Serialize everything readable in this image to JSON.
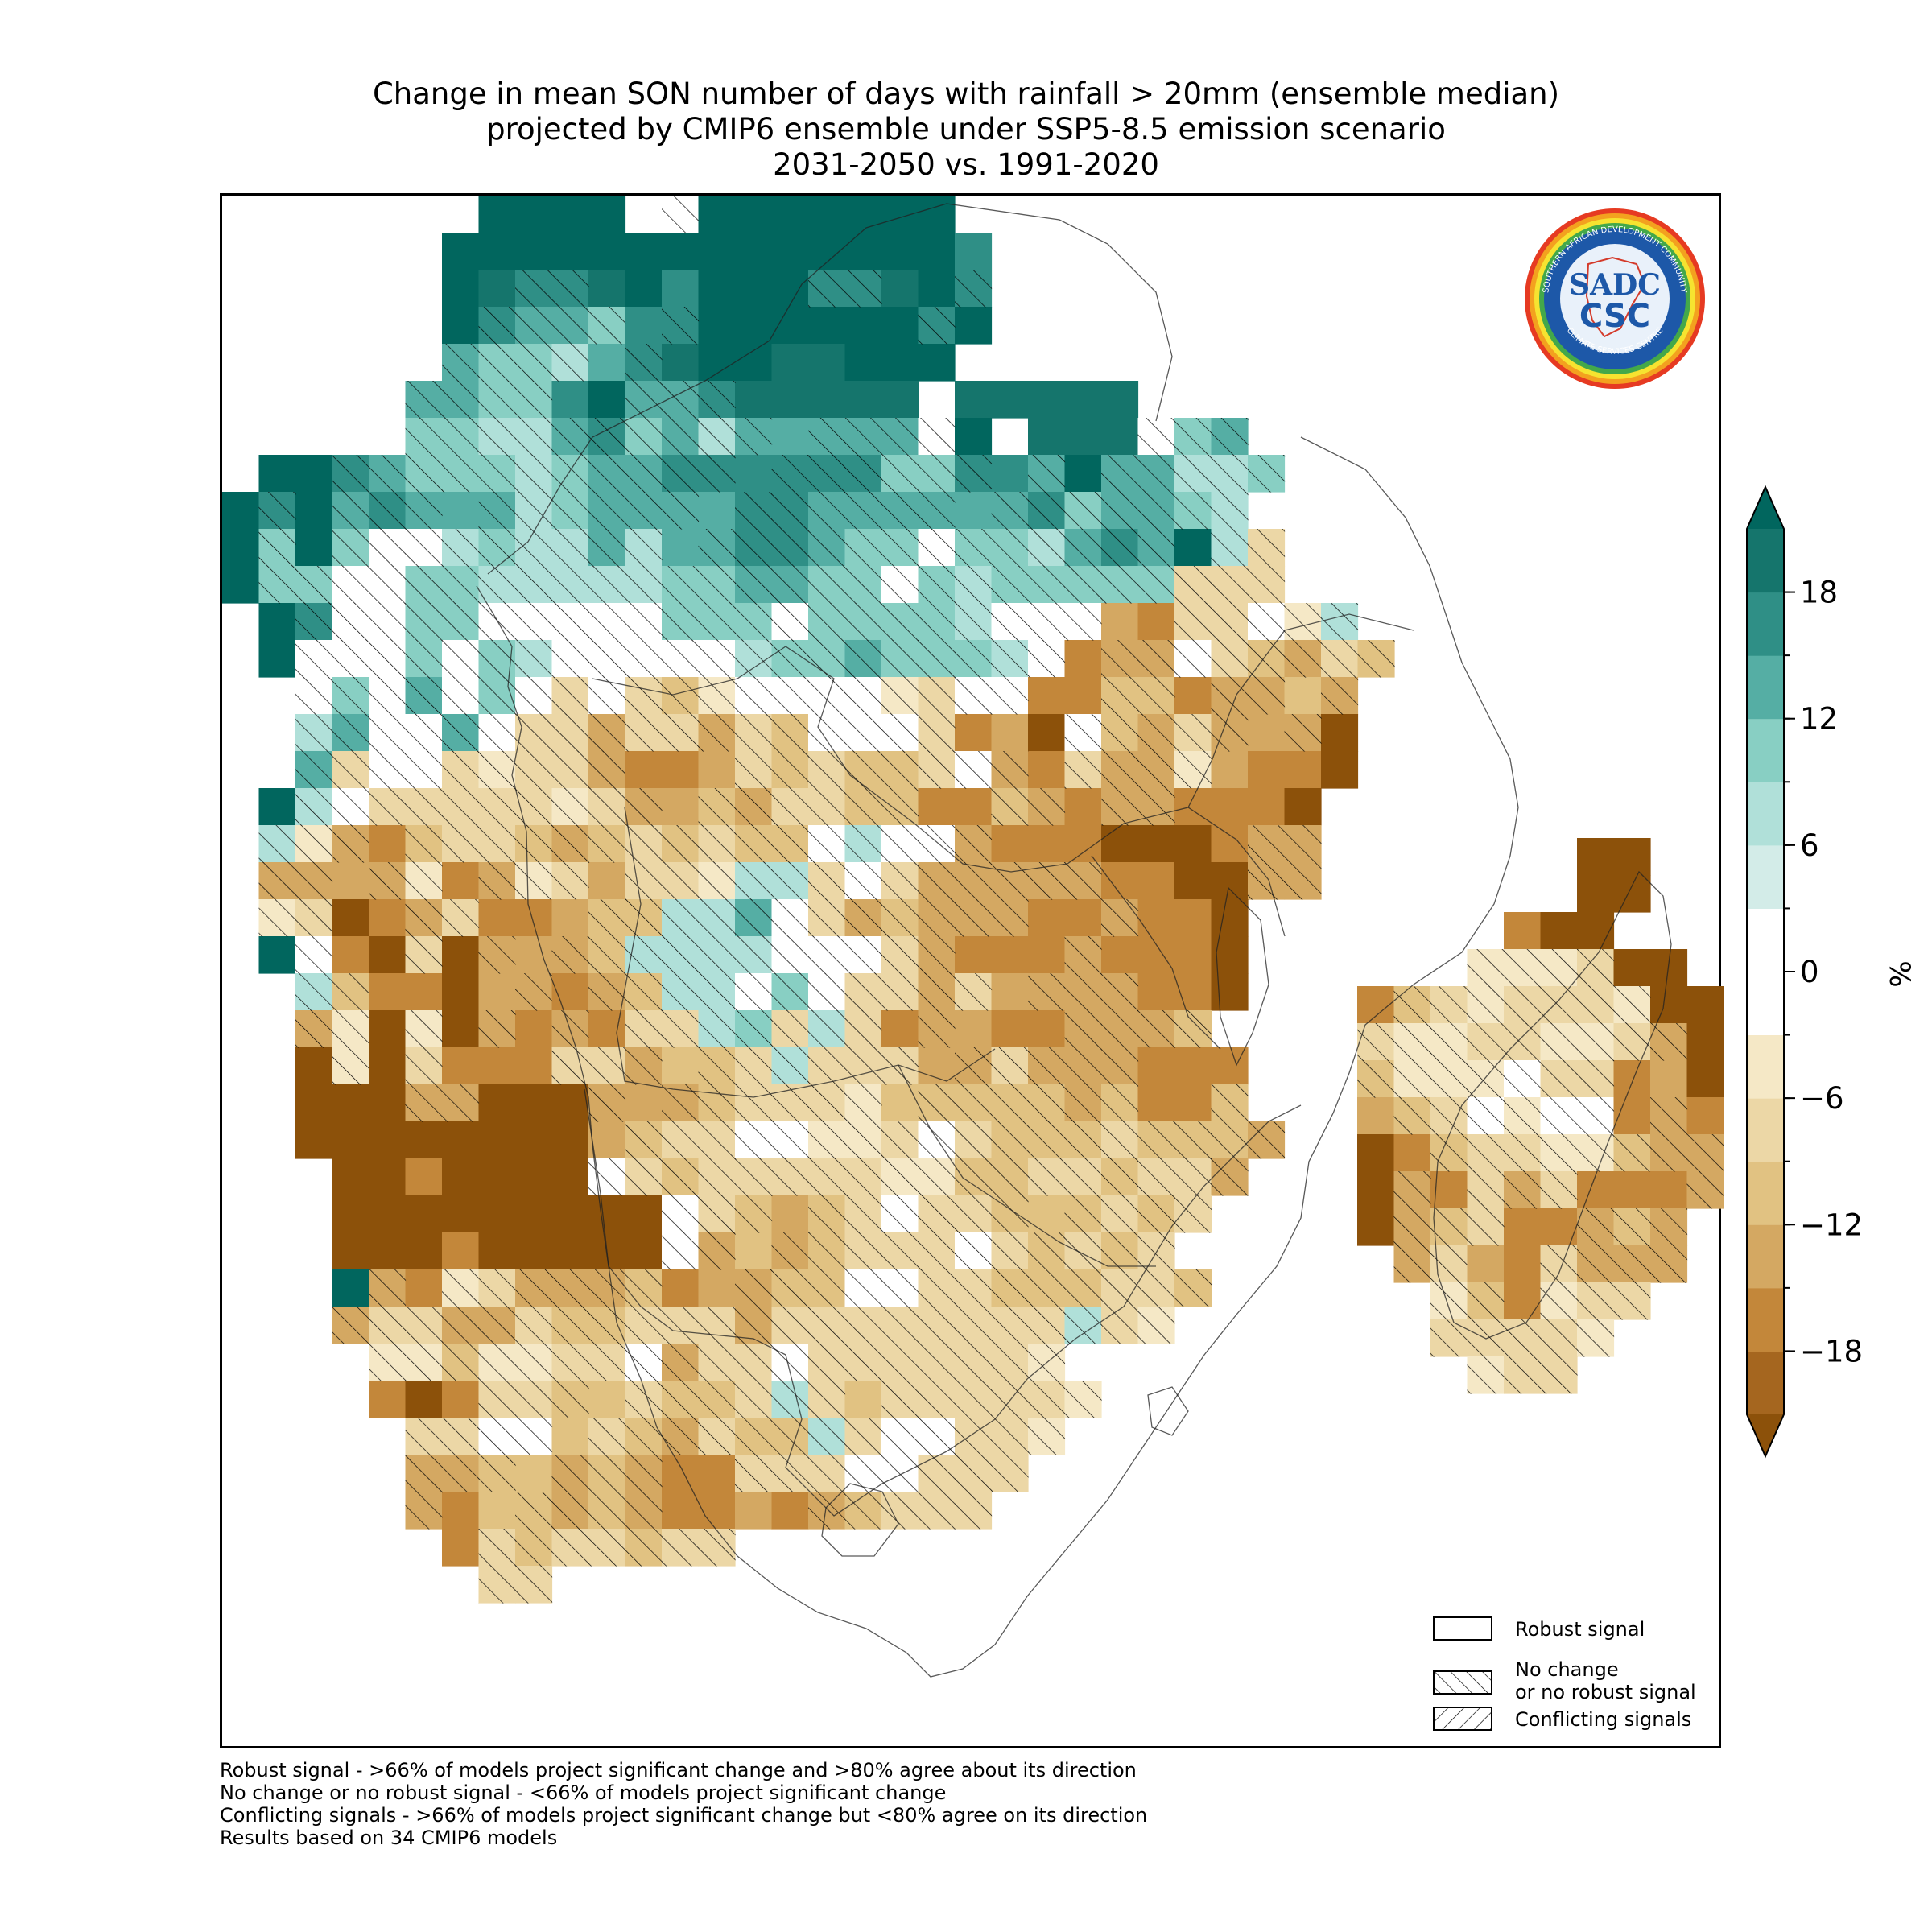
{
  "title": {
    "line1": "Change in mean SON number of days with rainfall > 20mm (ensemble median)",
    "line2": "projected by CMIP6 ensemble under SSP5-8.5 emission scenario",
    "line3": "2031-2050 vs. 1991-2020"
  },
  "logo": {
    "text_outer": "SOUTHERN AFRICAN DEVELOPMENT COMMUNITY",
    "text_bottom": "CLIMATE SERVICES CENTRE",
    "text_main": "CSC",
    "text_top": "SADC"
  },
  "colorbar": {
    "unit": "%",
    "tick_labels": [
      "18",
      "12",
      "6",
      "0",
      "−6",
      "−12",
      "−18"
    ],
    "bounds": [
      -21,
      -18,
      -15,
      -12,
      -9,
      -6,
      -3,
      3,
      6,
      9,
      12,
      15,
      18,
      21
    ],
    "colors": [
      "#a5661f",
      "#c3873a",
      "#d4a862",
      "#e1c282",
      "#ecd7a6",
      "#f5e8c6",
      "#ffffff",
      "#d3ece8",
      "#b0e0d9",
      "#88cfc3",
      "#55aea4",
      "#2f8f86",
      "#15756c"
    ],
    "under_color": "#8c510a",
    "over_color": "#01665e",
    "extend": "both"
  },
  "legend": {
    "items": [
      {
        "label": "Robust signal",
        "hatch": "none"
      },
      {
        "label_line1": "No change",
        "label_line2": "or no robust signal",
        "hatch": "forward"
      },
      {
        "label": "Conflicting signals",
        "hatch": "backward"
      }
    ]
  },
  "notes": {
    "line1": "Robust signal - >66% of models project significant change and >80% agree about its direction",
    "line2": "No change or no robust signal - <66% of models project significant change",
    "line3": "Conflicting signals - >66% of models project significant change but <80% agree on its direction",
    "line4": "Results based on 34 CMIP6 models"
  },
  "map": {
    "region": "Southern Africa (SADC)",
    "legend_codes": {
      "A": "over",
      "B": 18,
      "C": 15,
      "D": 12,
      "E": 9,
      "F": 6,
      ".": 0,
      "G": -6,
      "H": -9,
      "I": -12,
      "J": -15,
      "K": -18,
      "L": "under"
    },
    "mainland_rows": [
      "       AAAA .AAAAAAA       ",
      "      AAAAAAAAAAAAAAC      ",
      "      ABCCBACAAACCBAC      ",
      "      ACDDECCAAAAAACA      ",
      "      DEEFDCBAABBAAA       ",
      "     DDEECADDCBBBBB BBBBB  ",
      "     EEFFDCEDFDDDDD.A BBB.ED ",
      " AACDEEEFEDDCCCCCCEECCDADDFFE",
      "ACADCDDDFEDDDDCCDDDDDDCEDDEF ",
      "AEAE..FEFFDFDDCCDEE.EEFDCDAFH ",
      "AEE..EEFFFFFEEDDEE.EFEEEEEHHH ",
      " AC..EE.....EEE.EEEEF...JKHH.GF",
      " A...E.EF.....FEEDEEEF.KJJ.HIJHI",
      "  .E.D.E.H.HIG....GH..KKIIKJJIJ",
      "  FD..D.HHJHHJHI...HKJL.IJHJJJL",
      "  DH..HGHHJKKJHIHIIH.JKHJJGJKKL",
      " AF.HHHHHGHJJIJHHIIKKIJKJJKKKL",
      " FGJKIHHIJIHIHII.F..JKKKLLLKJJ",
      " JJJJGKJGHJHHGFFH.HJJJJJKKLLJJ",
      " GHLKJHKKJIIFFD.HJIJJJKKJKKL",
      " A.KLHLJJJIFFFF...HJKKKJKKKL",
      "  FIKKLJJKJIFF.E.HHJHJJJJKKL",
      "  JGLGLJKJKHHFEHFHKJJKKJJJI",
      "  LGLHKKKHHJIIHFHHHJJHJJJKKK",
      "  LLLJJLLLJJJIHHHGIIIIIJIKKI",
      "  LLLLLLLLJIHH..GGH.HIIIHIIIJ",
      "   LLKLLLL.HIHHHHHGGIIHHIHHJ",
      "   LLLLLLLLL.HIJIH.HHIIIHIH ",
      "   LLLKLLLLL.JIJIHHH.HIHIH ",
      "   AJKGHJJJIKJJII..HHIIIHHI",
      "   JHHJJHIIHHHJHHHHHHHHFHG",
      "    GGIGGHH.JHH.HHHHHHG",
      "    KLKHHIIHIIHFHIHHHHHG",
      "     HH..IHIJHIIFH..HHG",
      "     JJIIJIJKKHHH..HHH",
      "     JKIIJIJKKJKJIHHH",
      "      KHIHHIHH",
      "       HH"
    ],
    "madagascar_rows": [
      "      LL",
      "      LL",
      "    KLL",
      "   GGGHLL",
      "KIHGHHHGLL",
      "HGGHHGGHJL",
      "IGGG.HHKJL",
      "JIH.G..KJK",
      "LKIHHGGIJJ",
      "LJKHJHKKKJ",
      "LJIHKKJIJ",
      " JHJKHJJJ",
      "  GIKGHH",
      "  HHHHG",
      "   GHH"
    ]
  }
}
